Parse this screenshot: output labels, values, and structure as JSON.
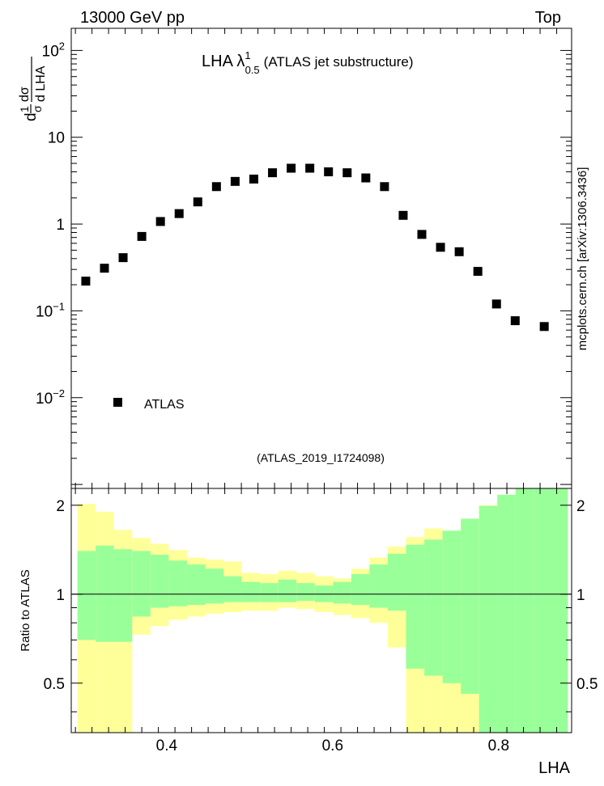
{
  "header": {
    "left": "13000 GeV pp",
    "right": "Top"
  },
  "watermark": "mcplots.cern.ch [arXiv:1306.3436]",
  "analysis_tag": "(ATLAS_2019_I1724098)",
  "colors": {
    "marker": "#000000",
    "band_outer": "#ffff99",
    "band_inner": "#99ff99",
    "analysis_tag": "#999999",
    "watermark": "#888888"
  },
  "chart_data": [
    {
      "type": "scatter",
      "title": "LHA λ",
      "title_sup": "1",
      "title_sub": "0.5",
      "title_suffix": "(ATLAS jet substructure)",
      "ylabel_parts": [
        "d",
        "1",
        "σ",
        "dσ",
        "d LHA"
      ],
      "ylog": true,
      "ylim": [
        0.0009,
        180
      ],
      "xlim": [
        0.285,
        0.888
      ],
      "yticks": [
        {
          "value": 100,
          "base": "10",
          "exp": "2"
        },
        {
          "value": 10,
          "base": "10",
          "exp": ""
        },
        {
          "value": 1,
          "base": "1",
          "exp": ""
        },
        {
          "value": 0.1,
          "base": "10",
          "exp": "−1"
        },
        {
          "value": 0.01,
          "base": "10",
          "exp": "−2"
        }
      ],
      "legend": {
        "label": "ATLAS",
        "position": "bottom-left"
      },
      "series": [
        {
          "name": "ATLAS",
          "x": [
            0.3025,
            0.325,
            0.3475,
            0.37,
            0.3925,
            0.415,
            0.4375,
            0.46,
            0.4825,
            0.505,
            0.5275,
            0.55,
            0.5725,
            0.595,
            0.6175,
            0.64,
            0.6625,
            0.685,
            0.7075,
            0.73,
            0.7525,
            0.775,
            0.7975,
            0.82,
            0.855
          ],
          "y": [
            0.22,
            0.31,
            0.41,
            0.72,
            1.07,
            1.32,
            1.8,
            2.7,
            3.1,
            3.3,
            3.9,
            4.4,
            4.4,
            4.0,
            3.9,
            3.4,
            2.7,
            1.26,
            0.76,
            0.54,
            0.48,
            0.285,
            0.12,
            0.077,
            0.066
          ]
        }
      ]
    },
    {
      "type": "area",
      "ylabel": "Ratio to ATLAS",
      "xlabel": "LHA",
      "xlim": [
        0.285,
        0.888
      ],
      "ylim": [
        0.34,
        2.28
      ],
      "xticks": [
        "0.4",
        "0.6",
        "0.8"
      ],
      "xtick_values": [
        0.4,
        0.6,
        0.8
      ],
      "yticks": [
        "0.5",
        "1",
        "2"
      ],
      "ytick_values": [
        0.5,
        1,
        2
      ],
      "reference_line": 1,
      "bins": [
        0.2925,
        0.3145,
        0.3365,
        0.3585,
        0.3805,
        0.4025,
        0.4245,
        0.4465,
        0.4685,
        0.4905,
        0.5125,
        0.5345,
        0.5565,
        0.5785,
        0.6005,
        0.6225,
        0.6445,
        0.6665,
        0.6885,
        0.7105,
        0.7325,
        0.7545,
        0.7765,
        0.7985,
        0.8205,
        0.8425,
        0.8835
      ],
      "outer_low": [
        0.7,
        0.69,
        0.69,
        0.34,
        0.34,
        0.34,
        0.34,
        0.34,
        0.34,
        0.34,
        0.34,
        0.34,
        0.34,
        0.34,
        0.34,
        0.34,
        0.34,
        0.34,
        0.34,
        0.34,
        0.34,
        0.34,
        0.34,
        0.34,
        0.34,
        0.34
      ],
      "outer_high": [
        2.02,
        1.9,
        1.65,
        1.55,
        1.48,
        1.41,
        1.33,
        1.31,
        1.29,
        1.18,
        1.17,
        1.2,
        1.18,
        1.15,
        1.13,
        1.22,
        1.33,
        1.45,
        1.56,
        1.67,
        1.64,
        1.78,
        2.0,
        2.17,
        2.28,
        2.28
      ],
      "inner_low": [
        0.99,
        0.99,
        0.89,
        0.84,
        0.94,
        0.98,
        0.99,
        1.0,
        0.99,
        0.98,
        0.99,
        1.0,
        1.0,
        1.0,
        1.0,
        0.99,
        0.98,
        0.98,
        0.99,
        0.99,
        0.99,
        0.98,
        0.97,
        0.99,
        1.0,
        1.0
      ],
      "inner_high": [
        1.4,
        1.46,
        1.42,
        1.4,
        1.36,
        1.3,
        1.26,
        1.22,
        1.15,
        1.1,
        1.09,
        1.12,
        1.09,
        1.07,
        1.1,
        1.17,
        1.26,
        1.37,
        1.47,
        1.53,
        1.64,
        1.8,
        1.99,
        2.17,
        2.28,
        2.28
      ],
      "band_note": "",
      "ratio_low_edge": [
        0.7,
        0.69,
        0.69,
        0.34,
        0.34,
        0.34,
        0.34,
        0.34,
        0.34,
        0.34,
        0.34,
        0.34,
        0.34,
        0.34,
        0.34,
        0.34,
        0.34,
        0.34,
        0.34,
        0.34,
        0.34,
        0.34,
        0.34,
        0.34,
        0.34,
        0.34
      ],
      "green_low": [
        0.7,
        0.69,
        0.69,
        0.84,
        0.9,
        0.91,
        0.92,
        0.93,
        0.94,
        0.94,
        0.94,
        0.94,
        0.95,
        0.94,
        0.93,
        0.92,
        0.9,
        0.88,
        0.56,
        0.53,
        0.5,
        0.46,
        0.34,
        0.34,
        0.34,
        0.34
      ],
      "yellow_low": [
        0.34,
        0.34,
        0.34,
        0.73,
        0.78,
        0.82,
        0.84,
        0.86,
        0.87,
        0.88,
        0.88,
        0.9,
        0.89,
        0.87,
        0.85,
        0.83,
        0.8,
        0.66,
        0.34,
        0.34,
        0.34,
        0.34,
        0.34,
        0.34,
        0.34,
        0.34
      ]
    }
  ]
}
